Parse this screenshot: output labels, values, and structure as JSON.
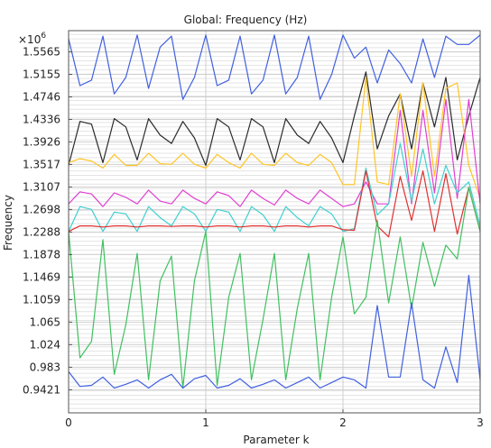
{
  "chart_data": {
    "type": "line",
    "title": "Global: Frequency (Hz)",
    "xlabel": "Parameter k",
    "ylabel": "Frequency",
    "y_exponent_label": "×10",
    "y_exponent_power": "6",
    "xlim": [
      0,
      3
    ],
    "ylim": [
      0.9,
      1.595
    ],
    "x_ticks": [
      "0",
      "1",
      "2",
      "3"
    ],
    "y_ticks": [
      "0.9421",
      "0.983",
      "1.024",
      "1.065",
      "1.1059",
      "1.1469",
      "1.1878",
      "1.2288",
      "1.2698",
      "1.3107",
      "1.3517",
      "1.3926",
      "1.4336",
      "1.4746",
      "1.5155",
      "1.5565"
    ],
    "grid": true,
    "x": [
      0,
      0.083,
      0.167,
      0.25,
      0.333,
      0.417,
      0.5,
      0.583,
      0.667,
      0.75,
      0.833,
      0.917,
      1,
      1.083,
      1.167,
      1.25,
      1.333,
      1.417,
      1.5,
      1.583,
      1.667,
      1.75,
      1.833,
      1.917,
      2,
      2.083,
      2.167,
      2.25,
      2.333,
      2.417,
      2.5,
      2.583,
      2.667,
      2.75,
      2.833,
      2.917,
      3
    ],
    "series": [
      {
        "color": "#4060e0",
        "values": [
          1.58,
          1.495,
          1.505,
          1.585,
          1.48,
          1.51,
          1.587,
          1.49,
          1.565,
          1.585,
          1.47,
          1.51,
          1.587,
          1.495,
          1.505,
          1.585,
          1.48,
          1.505,
          1.587,
          1.48,
          1.51,
          1.585,
          1.47,
          1.515,
          1.587,
          1.545,
          1.565,
          1.5,
          1.56,
          1.535,
          1.5,
          1.58,
          1.51,
          1.585,
          1.57,
          1.57,
          1.587
        ]
      },
      {
        "color": "#2b2b2b",
        "values": [
          1.35,
          1.43,
          1.425,
          1.355,
          1.435,
          1.42,
          1.36,
          1.435,
          1.405,
          1.39,
          1.43,
          1.4,
          1.35,
          1.435,
          1.42,
          1.36,
          1.435,
          1.42,
          1.355,
          1.435,
          1.405,
          1.39,
          1.43,
          1.4,
          1.355,
          1.44,
          1.52,
          1.38,
          1.44,
          1.48,
          1.38,
          1.5,
          1.42,
          1.51,
          1.36,
          1.44,
          1.51
        ]
      },
      {
        "color": "#ffc425",
        "values": [
          1.355,
          1.362,
          1.358,
          1.345,
          1.37,
          1.35,
          1.35,
          1.372,
          1.353,
          1.352,
          1.372,
          1.352,
          1.345,
          1.37,
          1.355,
          1.345,
          1.372,
          1.352,
          1.35,
          1.372,
          1.355,
          1.35,
          1.37,
          1.355,
          1.315,
          1.315,
          1.51,
          1.32,
          1.315,
          1.48,
          1.33,
          1.5,
          1.33,
          1.49,
          1.5,
          1.35,
          1.29
        ]
      },
      {
        "color": "#e040d0",
        "values": [
          1.28,
          1.302,
          1.298,
          1.275,
          1.3,
          1.292,
          1.28,
          1.305,
          1.285,
          1.28,
          1.305,
          1.29,
          1.28,
          1.302,
          1.295,
          1.275,
          1.305,
          1.29,
          1.278,
          1.305,
          1.29,
          1.28,
          1.305,
          1.29,
          1.275,
          1.28,
          1.32,
          1.28,
          1.28,
          1.45,
          1.28,
          1.45,
          1.3,
          1.47,
          1.29,
          1.47,
          1.28
        ]
      },
      {
        "color": "#40d0d0",
        "values": [
          1.23,
          1.275,
          1.27,
          1.23,
          1.265,
          1.262,
          1.23,
          1.275,
          1.255,
          1.24,
          1.275,
          1.262,
          1.23,
          1.27,
          1.265,
          1.23,
          1.275,
          1.26,
          1.23,
          1.275,
          1.255,
          1.24,
          1.275,
          1.262,
          1.23,
          1.235,
          1.345,
          1.26,
          1.28,
          1.39,
          1.285,
          1.38,
          1.28,
          1.35,
          1.3,
          1.32,
          1.24
        ]
      },
      {
        "color": "#e03030",
        "values": [
          1.23,
          1.24,
          1.24,
          1.238,
          1.24,
          1.24,
          1.238,
          1.24,
          1.24,
          1.239,
          1.24,
          1.24,
          1.238,
          1.24,
          1.24,
          1.238,
          1.24,
          1.24,
          1.238,
          1.24,
          1.24,
          1.238,
          1.24,
          1.24,
          1.233,
          1.232,
          1.34,
          1.24,
          1.22,
          1.33,
          1.25,
          1.34,
          1.23,
          1.335,
          1.225,
          1.31,
          1.23
        ]
      },
      {
        "color": "#40c060",
        "values": [
          1.23,
          1.0,
          1.03,
          1.215,
          0.97,
          1.06,
          1.19,
          0.96,
          1.14,
          1.185,
          0.945,
          1.14,
          1.23,
          0.95,
          1.11,
          1.19,
          0.96,
          1.07,
          1.19,
          0.96,
          1.09,
          1.19,
          0.96,
          1.11,
          1.22,
          1.08,
          1.11,
          1.25,
          1.1,
          1.22,
          1.09,
          1.21,
          1.13,
          1.205,
          1.18,
          1.31,
          1.23
        ]
      },
      {
        "color": "#4060e0",
        "values": [
          0.975,
          0.948,
          0.95,
          0.965,
          0.945,
          0.952,
          0.96,
          0.945,
          0.96,
          0.97,
          0.945,
          0.962,
          0.968,
          0.945,
          0.95,
          0.962,
          0.945,
          0.952,
          0.96,
          0.945,
          0.955,
          0.965,
          0.945,
          0.955,
          0.965,
          0.96,
          0.945,
          1.095,
          0.965,
          0.965,
          1.1,
          0.96,
          0.945,
          1.02,
          0.955,
          1.15,
          0.96
        ]
      }
    ]
  }
}
